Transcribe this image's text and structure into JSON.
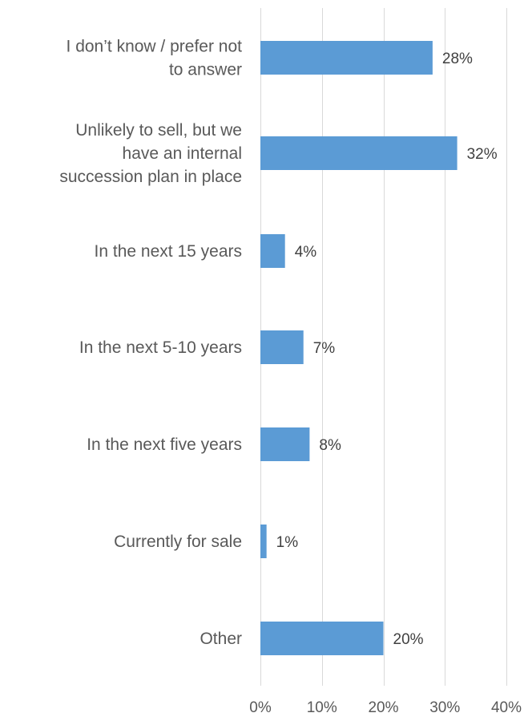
{
  "chart_data": {
    "type": "bar",
    "orientation": "horizontal",
    "categories": [
      [
        "I don’t know / prefer not",
        "to answer"
      ],
      [
        "Unlikely to sell, but we",
        "have an internal",
        "succession plan in place"
      ],
      [
        "In the next 15 years"
      ],
      [
        "In the next 5-10 years"
      ],
      [
        "In the next five years"
      ],
      [
        "Currently for sale"
      ],
      [
        "Other"
      ]
    ],
    "values": [
      28,
      32,
      4,
      7,
      8,
      1,
      20
    ],
    "value_labels": [
      "28%",
      "32%",
      "4%",
      "7%",
      "8%",
      "1%",
      "20%"
    ],
    "xlim": [
      0,
      40
    ],
    "xticks": [
      0,
      10,
      20,
      30,
      40
    ],
    "xtick_labels": [
      "0%",
      "10%",
      "20%",
      "30%",
      "40%"
    ],
    "grid": "vertical",
    "bar_color": "#5b9bd5",
    "legend": "none"
  }
}
